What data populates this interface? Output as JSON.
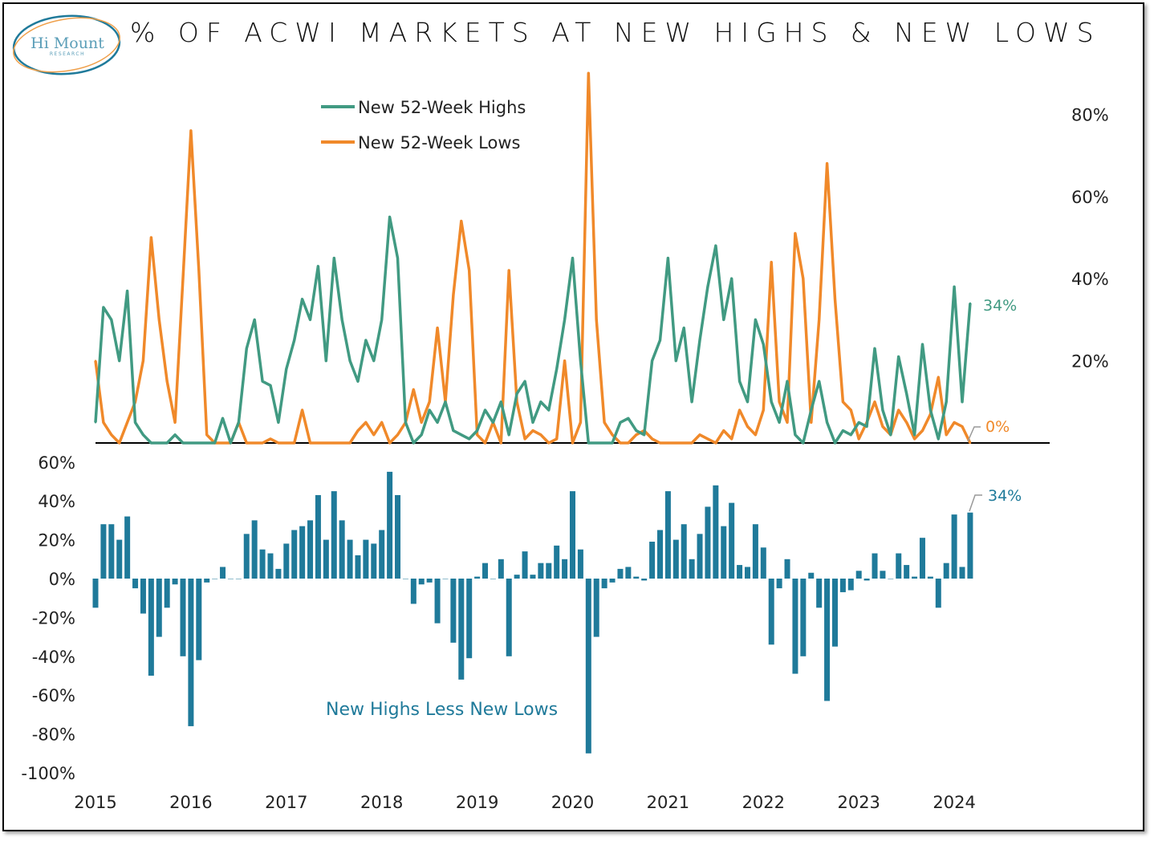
{
  "logo": {
    "name": "Hi Mount",
    "sub": "RESEARCH"
  },
  "colors": {
    "highs": "#419A82",
    "lows": "#F0892A",
    "net": "#1F7A9A",
    "logo_blue": "#1F7A9A",
    "logo_orange": "#F0A04B"
  },
  "chart_data": [
    {
      "type": "line",
      "title": "% OF ACWI MARKETS AT NEW HIGHS & NEW LOWS",
      "legend": "top-left",
      "ylim": [
        0,
        90
      ],
      "yticks": [
        "20%",
        "40%",
        "60%",
        "80%"
      ],
      "ytick_values": [
        20,
        40,
        60,
        80
      ],
      "grid": false,
      "dates": [
        "2015-01",
        "2015-02",
        "2015-03",
        "2015-04",
        "2015-05",
        "2015-06",
        "2015-07",
        "2015-08",
        "2015-09",
        "2015-10",
        "2015-11",
        "2015-12",
        "2016-01",
        "2016-02",
        "2016-03",
        "2016-04",
        "2016-05",
        "2016-06",
        "2016-07",
        "2016-08",
        "2016-09",
        "2016-10",
        "2016-11",
        "2016-12",
        "2017-01",
        "2017-02",
        "2017-03",
        "2017-04",
        "2017-05",
        "2017-06",
        "2017-07",
        "2017-08",
        "2017-09",
        "2017-10",
        "2017-11",
        "2017-12",
        "2018-01",
        "2018-02",
        "2018-03",
        "2018-04",
        "2018-05",
        "2018-06",
        "2018-07",
        "2018-08",
        "2018-09",
        "2018-10",
        "2018-11",
        "2018-12",
        "2019-01",
        "2019-02",
        "2019-03",
        "2019-04",
        "2019-05",
        "2019-06",
        "2019-07",
        "2019-08",
        "2019-09",
        "2019-10",
        "2019-11",
        "2019-12",
        "2020-01",
        "2020-02",
        "2020-03",
        "2020-04",
        "2020-05",
        "2020-06",
        "2020-07",
        "2020-08",
        "2020-09",
        "2020-10",
        "2020-11",
        "2020-12",
        "2021-01",
        "2021-02",
        "2021-03",
        "2021-04",
        "2021-05",
        "2021-06",
        "2021-07",
        "2021-08",
        "2021-09",
        "2021-10",
        "2021-11",
        "2021-12",
        "2022-01",
        "2022-02",
        "2022-03",
        "2022-04",
        "2022-05",
        "2022-06",
        "2022-07",
        "2022-08",
        "2022-09",
        "2022-10",
        "2022-11",
        "2022-12",
        "2023-01",
        "2023-02",
        "2023-03",
        "2023-04",
        "2023-05",
        "2023-06",
        "2023-07",
        "2023-08",
        "2023-09",
        "2023-10",
        "2023-11",
        "2023-12",
        "2024-01",
        "2024-02",
        "2024-03"
      ],
      "series": [
        {
          "name": "New 52-Week Highs",
          "end_label": "34%",
          "values": [
            5,
            33,
            30,
            20,
            37,
            5,
            2,
            0,
            0,
            0,
            2,
            0,
            0,
            0,
            0,
            0,
            6,
            0,
            5,
            23,
            30,
            15,
            14,
            5,
            18,
            25,
            35,
            30,
            43,
            20,
            45,
            30,
            20,
            15,
            25,
            20,
            30,
            55,
            45,
            5,
            0,
            2,
            8,
            5,
            10,
            3,
            2,
            1,
            3,
            8,
            5,
            10,
            2,
            12,
            15,
            5,
            10,
            8,
            18,
            30,
            45,
            20,
            0,
            0,
            0,
            0,
            5,
            6,
            3,
            2,
            20,
            25,
            45,
            20,
            28,
            10,
            25,
            38,
            48,
            30,
            40,
            15,
            10,
            30,
            24,
            10,
            5,
            15,
            2,
            0,
            8,
            15,
            5,
            0,
            3,
            2,
            5,
            4,
            23,
            8,
            2,
            21,
            12,
            2,
            24,
            8,
            1,
            10,
            38,
            10,
            34
          ]
        },
        {
          "name": "New 52-Week Lows",
          "end_label": "0%",
          "values": [
            20,
            5,
            2,
            0,
            5,
            10,
            20,
            50,
            30,
            15,
            5,
            40,
            76,
            42,
            2,
            0,
            0,
            0,
            5,
            0,
            0,
            0,
            1,
            0,
            0,
            0,
            8,
            0,
            0,
            0,
            0,
            0,
            0,
            3,
            5,
            2,
            5,
            0,
            2,
            5,
            13,
            5,
            10,
            28,
            10,
            36,
            54,
            42,
            2,
            0,
            5,
            0,
            42,
            10,
            1,
            3,
            2,
            0,
            1,
            20,
            0,
            5,
            90,
            30,
            5,
            2,
            0,
            0,
            2,
            3,
            1,
            0,
            0,
            0,
            0,
            0,
            2,
            1,
            0,
            3,
            1,
            8,
            4,
            2,
            8,
            44,
            10,
            5,
            51,
            40,
            5,
            30,
            68,
            35,
            10,
            8,
            1,
            5,
            10,
            4,
            2,
            8,
            5,
            1,
            3,
            7,
            16,
            2,
            5,
            4,
            0
          ]
        }
      ],
      "xticks": [
        "2015",
        "2016",
        "2017",
        "2018",
        "2019",
        "2020",
        "2021",
        "2022",
        "2023",
        "2024"
      ]
    },
    {
      "type": "bar",
      "annotation": "New Highs Less New Lows",
      "end_label": "34%",
      "ylim": [
        -100,
        60
      ],
      "yticks": [
        "60%",
        "40%",
        "20%",
        "0%",
        "-20%",
        "-40%",
        "-60%",
        "-80%",
        "-100%"
      ],
      "ytick_values": [
        60,
        40,
        20,
        0,
        -20,
        -40,
        -60,
        -80,
        -100
      ],
      "xticks": [
        "2015",
        "2016",
        "2017",
        "2018",
        "2019",
        "2020",
        "2021",
        "2022",
        "2023",
        "2024"
      ]
    }
  ]
}
